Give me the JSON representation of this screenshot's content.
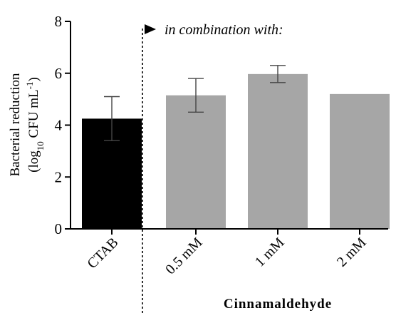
{
  "chart_data": {
    "type": "bar",
    "categories": [
      "CTAB",
      "0.5 mM",
      "1 mM",
      "2 mM"
    ],
    "values": [
      4.25,
      5.15,
      5.97,
      5.2
    ],
    "error": [
      0.85,
      0.65,
      0.33,
      0.0
    ],
    "bar_colors": [
      "#000000",
      "#a6a6a6",
      "#a6a6a6",
      "#a6a6a6"
    ],
    "ylim": [
      0,
      8
    ],
    "yticks": [
      "0",
      "2",
      "4",
      "6",
      "8"
    ],
    "ylabel_line1": "Bacterial reduction",
    "ylabel_line2": {
      "open": "(log",
      "sub": "10",
      "mid": " CFU mL",
      "sup": "-1",
      "close": ")"
    },
    "annotation": "in combination with:",
    "group_label": "Cinnamaldehyde",
    "grid": false,
    "legend": "none"
  }
}
